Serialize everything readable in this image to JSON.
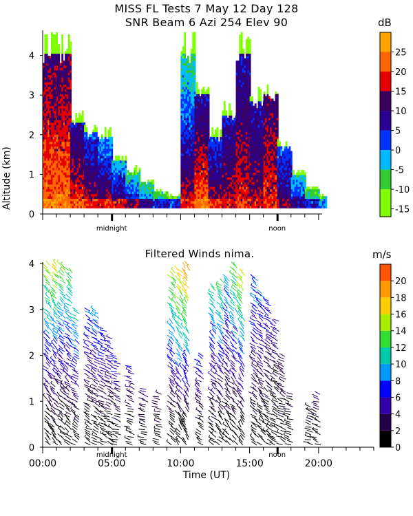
{
  "header": {
    "title_line1": "MISS FL Tests    7 May 12 Day 128",
    "title_line2": "SNR Beam 6 Azi 254 Elev 90"
  },
  "shared": {
    "ylabel": "Altitude (km)",
    "xlabel": "Time (UT)",
    "midnight_label": "midnight",
    "noon_label": "noon",
    "x_tick_labels": [
      "00:00",
      "05:00",
      "10:00",
      "15:00",
      "20:00"
    ]
  },
  "colors": {
    "snr_scale": [
      "#7fff00",
      "#33cc33",
      "#00bbff",
      "#0033ff",
      "#2a0090",
      "#3a0060",
      "#e60000",
      "#ff6600",
      "#ffa500",
      "#ffd400"
    ],
    "wind_scale": [
      "#000000",
      "#220044",
      "#3300aa",
      "#0000ff",
      "#0099ff",
      "#00ccaa",
      "#33dd33",
      "#aaee00",
      "#ffcc00",
      "#ff9900",
      "#ff5500",
      "#ff0000"
    ]
  },
  "chart_data": [
    {
      "type": "heatmap",
      "title": "SNR Beam 6 Azi 254 Elev 90",
      "xlabel": "Time (UT)",
      "ylabel": "Altitude (km)",
      "xlim": [
        0,
        24
      ],
      "ylim": [
        0,
        4.6
      ],
      "y_ticks": [
        0,
        1,
        2,
        3,
        4
      ],
      "colorbar": {
        "unit": "dB",
        "ticks": [
          -15,
          -10,
          -5,
          0,
          5,
          10,
          15,
          20,
          25
        ],
        "range": [
          -17,
          30
        ]
      },
      "columns": [
        {
          "t0": 0.0,
          "t1": 1.0,
          "top": 4.6,
          "core": 25,
          "hiLevel": 10
        },
        {
          "t0": 1.0,
          "t1": 2.0,
          "top": 4.6,
          "core": 25,
          "hiLevel": 10
        },
        {
          "t0": 2.0,
          "t1": 3.0,
          "top": 2.6,
          "core": 22,
          "hiLevel": 5
        },
        {
          "t0": 3.0,
          "t1": 4.0,
          "top": 2.3,
          "core": 20,
          "hiLevel": 0
        },
        {
          "t0": 4.0,
          "t1": 5.0,
          "top": 2.2,
          "core": 20,
          "hiLevel": -5
        },
        {
          "t0": 5.0,
          "t1": 6.0,
          "top": 1.5,
          "core": 18,
          "hiLevel": -5
        },
        {
          "t0": 6.0,
          "t1": 7.0,
          "top": 1.2,
          "core": 15,
          "hiLevel": -10
        },
        {
          "t0": 7.0,
          "t1": 8.0,
          "top": 0.9,
          "core": 10,
          "hiLevel": -10
        },
        {
          "t0": 8.0,
          "t1": 9.0,
          "top": 0.6,
          "core": 5,
          "hiLevel": -10
        },
        {
          "t0": 9.0,
          "t1": 10.0,
          "top": 0.5,
          "core": 5,
          "hiLevel": -10
        },
        {
          "t0": 10.0,
          "t1": 11.0,
          "top": 4.6,
          "core": 20,
          "hiLevel": -10
        },
        {
          "t0": 11.0,
          "t1": 12.0,
          "top": 3.4,
          "core": 25,
          "hiLevel": 5
        },
        {
          "t0": 12.0,
          "t1": 13.0,
          "top": 2.2,
          "core": 20,
          "hiLevel": 0
        },
        {
          "t0": 13.0,
          "t1": 14.0,
          "top": 2.8,
          "core": 18,
          "hiLevel": 5
        },
        {
          "t0": 14.0,
          "t1": 15.0,
          "top": 4.6,
          "core": 20,
          "hiLevel": 5
        },
        {
          "t0": 15.0,
          "t1": 16.0,
          "top": 3.2,
          "core": 18,
          "hiLevel": 5
        },
        {
          "t0": 16.0,
          "t1": 17.0,
          "top": 3.4,
          "core": 20,
          "hiLevel": 10
        },
        {
          "t0": 17.0,
          "t1": 18.0,
          "top": 1.9,
          "core": 15,
          "hiLevel": 0
        },
        {
          "t0": 18.0,
          "t1": 19.0,
          "top": 1.1,
          "core": 10,
          "hiLevel": -5
        },
        {
          "t0": 19.0,
          "t1": 20.0,
          "top": 0.7,
          "core": 5,
          "hiLevel": -10
        },
        {
          "t0": 20.0,
          "t1": 20.5,
          "top": 0.5,
          "core": 0,
          "hiLevel": -10
        }
      ]
    },
    {
      "type": "scatter",
      "title": "Filtered Winds nima.",
      "xlabel": "Time (UT)",
      "ylabel": "Altitude (km)",
      "xlim": [
        0,
        24
      ],
      "ylim": [
        0,
        4
      ],
      "x_ticks": [
        0,
        5,
        10,
        15,
        20
      ],
      "y_ticks": [
        0,
        1,
        2,
        3,
        4
      ],
      "colorbar": {
        "unit": "m/s",
        "ticks": [
          0,
          2,
          4,
          6,
          8,
          10,
          12,
          14,
          16,
          18,
          20
        ],
        "range": [
          0,
          22
        ]
      },
      "columns": [
        {
          "time": 0.5,
          "top": 4.0,
          "speedTop": 15,
          "dir": 225
        },
        {
          "time": 1.0,
          "top": 4.0,
          "speedTop": 16,
          "dir": 225
        },
        {
          "time": 1.5,
          "top": 4.0,
          "speedTop": 14,
          "dir": 230
        },
        {
          "time": 2.0,
          "top": 3.9,
          "speedTop": 13,
          "dir": 230
        },
        {
          "time": 2.5,
          "top": 3.0,
          "speedTop": 12,
          "dir": 235
        },
        {
          "time": 3.5,
          "top": 3.0,
          "speedTop": 8,
          "dir": 240
        },
        {
          "time": 4.0,
          "top": 3.0,
          "speedTop": 9,
          "dir": 240
        },
        {
          "time": 4.5,
          "top": 2.6,
          "speedTop": 8,
          "dir": 245
        },
        {
          "time": 5.0,
          "top": 2.4,
          "speedTop": 7,
          "dir": 245
        },
        {
          "time": 5.5,
          "top": 2.0,
          "speedTop": 7,
          "dir": 250
        },
        {
          "time": 6.5,
          "top": 1.8,
          "speedTop": 6,
          "dir": 250
        },
        {
          "time": 7.5,
          "top": 1.3,
          "speedTop": 5,
          "dir": 255
        },
        {
          "time": 8.5,
          "top": 1.2,
          "speedTop": 4,
          "dir": 260
        },
        {
          "time": 9.5,
          "top": 3.8,
          "speedTop": 15,
          "dir": 225
        },
        {
          "time": 10.0,
          "top": 3.9,
          "speedTop": 18,
          "dir": 220
        },
        {
          "time": 10.5,
          "top": 4.0,
          "speedTop": 20,
          "dir": 215
        },
        {
          "time": 11.5,
          "top": 2.0,
          "speedTop": 7,
          "dir": 235
        },
        {
          "time": 12.5,
          "top": 3.5,
          "speedTop": 12,
          "dir": 230
        },
        {
          "time": 13.0,
          "top": 3.6,
          "speedTop": 13,
          "dir": 225
        },
        {
          "time": 13.5,
          "top": 3.7,
          "speedTop": 10,
          "dir": 225
        },
        {
          "time": 14.0,
          "top": 4.0,
          "speedTop": 14,
          "dir": 225
        },
        {
          "time": 14.5,
          "top": 3.8,
          "speedTop": 16,
          "dir": 220
        },
        {
          "time": 15.5,
          "top": 3.7,
          "speedTop": 9,
          "dir": 230
        },
        {
          "time": 16.0,
          "top": 3.4,
          "speedTop": 8,
          "dir": 230
        },
        {
          "time": 16.5,
          "top": 3.2,
          "speedTop": 7,
          "dir": 235
        },
        {
          "time": 17.0,
          "top": 2.8,
          "speedTop": 5,
          "dir": 240
        },
        {
          "time": 17.5,
          "top": 2.0,
          "speedTop": 4,
          "dir": 245
        },
        {
          "time": 18.0,
          "top": 1.2,
          "speedTop": 3,
          "dir": 250
        },
        {
          "time": 19.5,
          "top": 0.9,
          "speedTop": 2,
          "dir": 255
        },
        {
          "time": 20.0,
          "top": 1.2,
          "speedTop": 4,
          "dir": 250
        }
      ]
    }
  ]
}
